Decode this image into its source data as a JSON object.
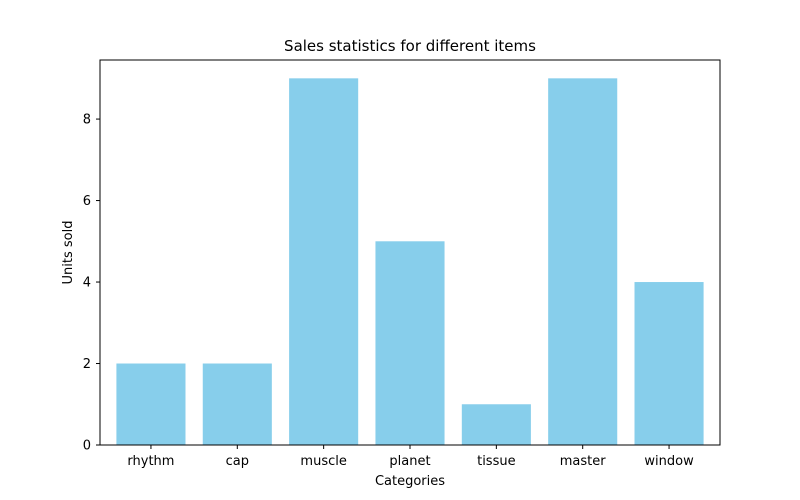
{
  "chart_data": {
    "type": "bar",
    "title": "Sales statistics for different items",
    "xlabel": "Categories",
    "ylabel": "Units sold",
    "categories": [
      "rhythm",
      "cap",
      "muscle",
      "planet",
      "tissue",
      "master",
      "window"
    ],
    "values": [
      2,
      2,
      9,
      5,
      1,
      9,
      4
    ],
    "ylim": [
      0,
      9.45
    ],
    "yticks": [
      0,
      2,
      4,
      6,
      8
    ],
    "grid": false,
    "bar_color": "#87CEEB"
  }
}
